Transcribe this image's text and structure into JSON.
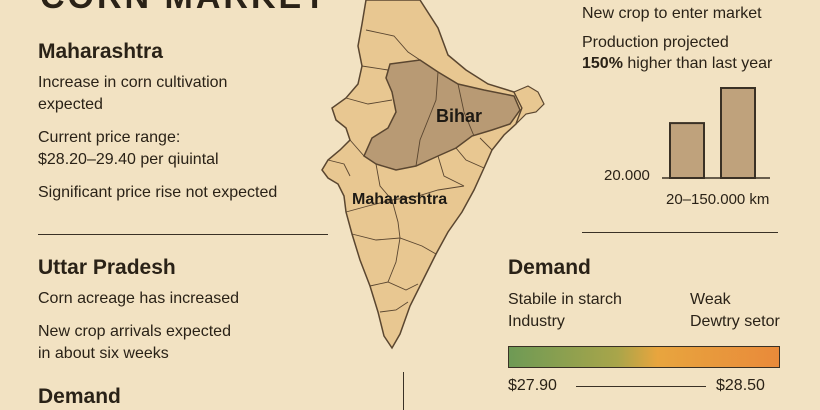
{
  "top_partial_title": "CORN MARKET",
  "left": {
    "maharashtra": {
      "heading": "Maharashtra",
      "line1": "Increase in corn cultivation",
      "line2": "expected",
      "line3": "Current price range:",
      "line4": "$28.20–29.40 per qiuintal",
      "line5": "Significant price rise not expected"
    },
    "uttar_pradesh": {
      "heading": "Uttar Pradesh",
      "line1": "Corn acreage has increased",
      "line2": "New crop arrivals expected",
      "line3": "in about six weeks"
    },
    "demand_heading": "Demand"
  },
  "map": {
    "label_bihar": "Bihar",
    "label_maharashtra": "Maharashtra",
    "colors": {
      "land": "#e8c791",
      "highlight": "#b89a74",
      "border": "#5a4630"
    }
  },
  "right_top": {
    "line1": "New crop to enter market",
    "line2": "Production projected",
    "line3_bold": "150%",
    "line3_rest": " higher than last year",
    "axis_value": "20.000",
    "axis_caption": "20–150.000 km"
  },
  "chart_data": {
    "type": "bar",
    "categories": [
      "",
      ""
    ],
    "values": [
      20000,
      150000
    ],
    "ylabel": "",
    "xlabel": "20–150.000 km"
  },
  "demand_right": {
    "heading": "Demand",
    "left_label_1": "Stabile in  starch",
    "left_label_2": "Industry",
    "right_label_1": "Weak",
    "right_label_2": "Dewtry setor",
    "price_low": "$27.90",
    "price_high": "$28.50"
  }
}
